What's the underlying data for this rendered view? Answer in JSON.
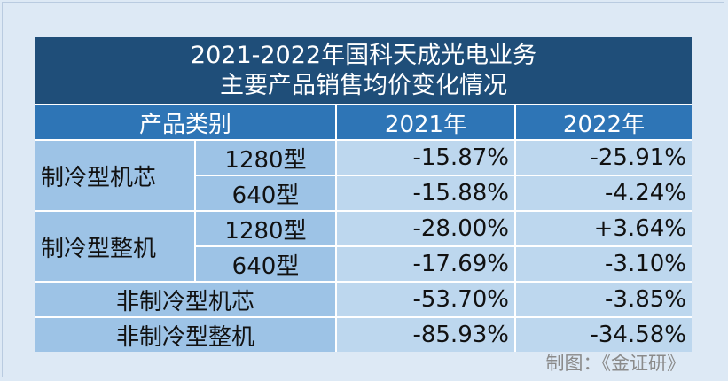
{
  "title": {
    "line1": "2021-2022年国科天成光电业务",
    "line2": "主要产品销售均价变化情况"
  },
  "header": {
    "category": "产品类别",
    "year1": "2021年",
    "year2": "2022年"
  },
  "groups": [
    {
      "name": "制冷型机芯",
      "rows": [
        {
          "sub": "1280型",
          "y2021": "-15.87%",
          "y2022": "-25.91%"
        },
        {
          "sub": "640型",
          "y2021": "-15.88%",
          "y2022": "-4.24%"
        }
      ]
    },
    {
      "name": "制冷型整机",
      "rows": [
        {
          "sub": "1280型",
          "y2021": "-28.00%",
          "y2022": "+3.64%"
        },
        {
          "sub": "640型",
          "y2021": "-17.69%",
          "y2022": "-3.10%"
        }
      ]
    }
  ],
  "rows": [
    {
      "name": "非制冷型机芯",
      "y2021": "-53.70%",
      "y2022": "-3.85%"
    },
    {
      "name": "非制冷型整机",
      "y2021": "-85.93%",
      "y2022": "-34.58%"
    }
  ],
  "source": "制图：《金证研》"
}
